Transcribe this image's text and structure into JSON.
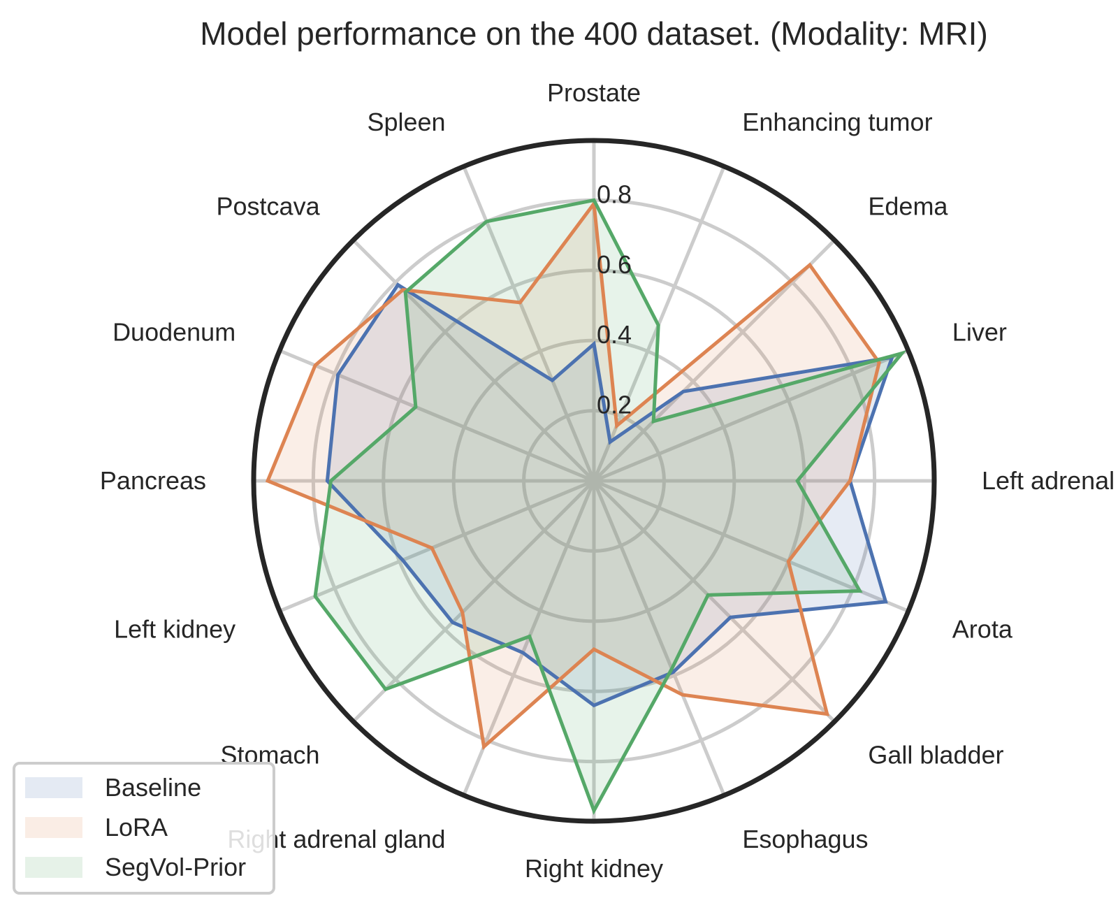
{
  "chart_data": {
    "type": "radar",
    "title": "Model performance on the 400 dataset. (Modality: MRI)",
    "categories": [
      "Prostate",
      "Enhancing tumor",
      "Edema",
      "Liver",
      "Left adrenal gland",
      "Arota",
      "Gall bladder",
      "Esophagus",
      "Right kidney",
      "Right adrenal gland",
      "Stomach",
      "Left kidney",
      "Pancreas",
      "Duodenum",
      "Postcava",
      "Spleen"
    ],
    "rlim": [
      0,
      0.97
    ],
    "rticks": [
      0.2,
      0.4,
      0.6,
      0.8
    ],
    "rtick_labels": [
      "0.2",
      "0.4",
      "0.6",
      "0.8"
    ],
    "grid": true,
    "legend_position": "lower-left",
    "series": [
      {
        "name": "Baseline",
        "color": "#4c72b0",
        "values": [
          0.39,
          0.12,
          0.36,
          0.92,
          0.73,
          0.9,
          0.55,
          0.59,
          0.64,
          0.53,
          0.57,
          0.59,
          0.76,
          0.79,
          0.79,
          0.31
        ]
      },
      {
        "name": "LoRA",
        "color": "#dd8452",
        "values": [
          0.79,
          0.17,
          0.87,
          0.88,
          0.73,
          0.6,
          0.94,
          0.66,
          0.48,
          0.82,
          0.53,
          0.5,
          0.93,
          0.86,
          0.77,
          0.55
        ]
      },
      {
        "name": "SegVol-Prior",
        "color": "#55a868",
        "values": [
          0.8,
          0.48,
          0.24,
          0.95,
          0.58,
          0.82,
          0.46,
          0.58,
          0.94,
          0.48,
          0.84,
          0.86,
          0.75,
          0.55,
          0.76,
          0.8
        ]
      }
    ]
  }
}
